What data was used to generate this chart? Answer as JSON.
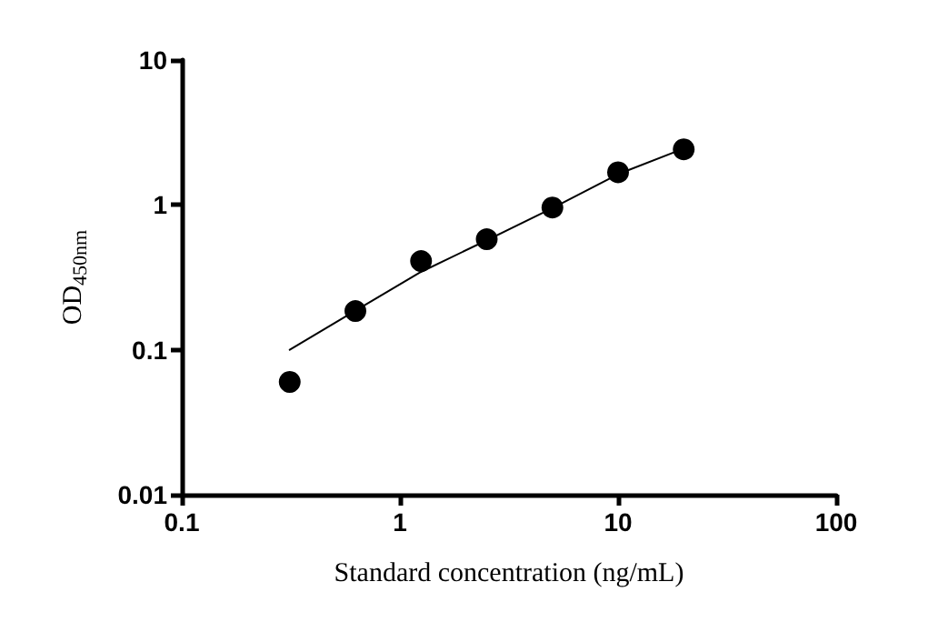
{
  "chart_data": {
    "type": "scatter",
    "xlabel": "Standard concentration (ng/mL)",
    "ylabel": "OD$_{450nm}$",
    "log": "xy",
    "grid": false,
    "marker": "circle",
    "xlim": [
      0.1,
      100
    ],
    "xticks": [
      0.1,
      1,
      10,
      100
    ],
    "ylim": [
      0.01,
      10
    ],
    "yticks": [
      0.01,
      0.1,
      1,
      10
    ],
    "series": [
      {
        "color": "#000000",
        "x": [
          0.3125,
          0.625,
          1.25,
          2.5,
          5,
          10,
          20
        ],
        "values": [
          0.06,
          0.185,
          0.41,
          0.58,
          0.96,
          1.68,
          2.42
        ]
      },
      {
        "type": "line",
        "color": "#000000",
        "marker": "none",
        "line_style": "solid",
        "x": [
          0.3125,
          0.625,
          1.25,
          2.5,
          5,
          10,
          20
        ],
        "values": [
          0.1,
          0.186,
          0.345,
          0.57,
          0.95,
          1.63,
          2.45
        ]
      }
    ]
  }
}
